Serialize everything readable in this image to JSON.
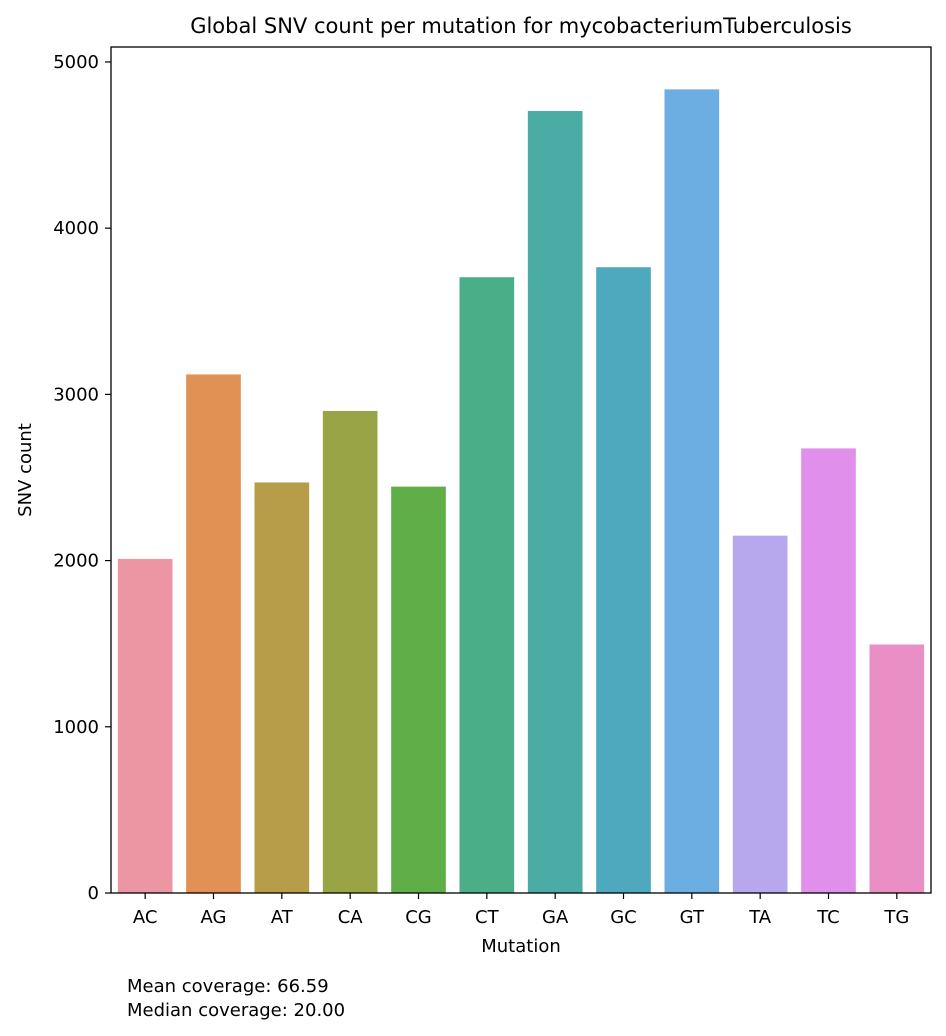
{
  "chart_data": {
    "type": "bar",
    "title": "Global SNV count per mutation for mycobacteriumTuberculosis",
    "xlabel": "Mutation",
    "ylabel": "SNV count",
    "ylim": [
      0,
      5090
    ],
    "yticks": [
      0,
      1000,
      2000,
      3000,
      4000,
      5000
    ],
    "grid": false,
    "categories": [
      "AC",
      "AG",
      "AT",
      "CA",
      "CG",
      "CT",
      "GA",
      "GC",
      "GT",
      "TA",
      "TC",
      "TG"
    ],
    "values": [
      2010,
      3120,
      2470,
      2900,
      2445,
      3705,
      4705,
      3765,
      4835,
      2150,
      2675,
      1495
    ],
    "colors": [
      "#EB96A2",
      "#E19153",
      "#B79C4A",
      "#98A446",
      "#5FAE48",
      "#4AAF89",
      "#4BACA6",
      "#4EA9BF",
      "#6CADE2",
      "#B7A7EC",
      "#E090EA",
      "#E98FC5"
    ]
  },
  "annotations": {
    "mean_coverage": "Mean coverage: 66.59",
    "median_coverage": "Median coverage: 20.00"
  }
}
